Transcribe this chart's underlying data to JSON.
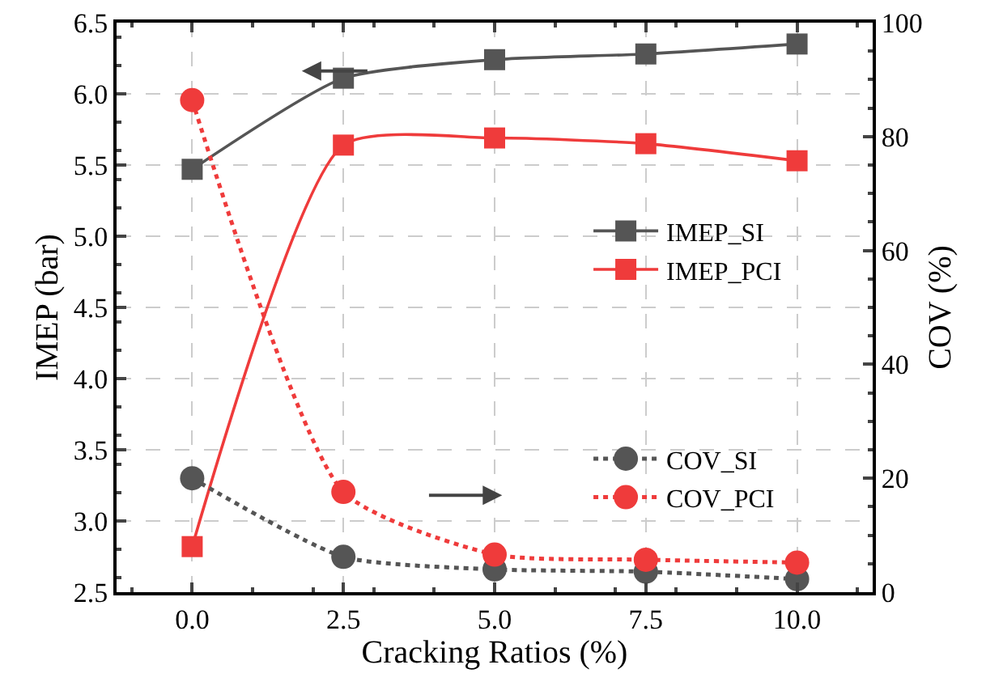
{
  "chart_data": {
    "type": "line",
    "xlabel": "Cracking Ratios (%)",
    "ylabel": "IMEP (bar)",
    "y2label": "COV (%)",
    "x": [
      0,
      2.5,
      5,
      7.5,
      10
    ],
    "xlim": [
      -1.25,
      11.25
    ],
    "xticks": [
      {
        "value": 0,
        "label": "0.0"
      },
      {
        "value": 2.5,
        "label": "2.5"
      },
      {
        "value": 5,
        "label": "5.0"
      },
      {
        "value": 7.5,
        "label": "7.5"
      },
      {
        "value": 10,
        "label": "10.0"
      }
    ],
    "ylim": [
      2.5,
      6.5
    ],
    "yticks": [
      {
        "value": 2.5,
        "label": "2.5"
      },
      {
        "value": 3,
        "label": "3.0"
      },
      {
        "value": 3.5,
        "label": "3.5"
      },
      {
        "value": 4,
        "label": "4.0"
      },
      {
        "value": 4.5,
        "label": "4.5"
      },
      {
        "value": 5,
        "label": "5.0"
      },
      {
        "value": 5.5,
        "label": "5.5"
      },
      {
        "value": 6,
        "label": "6.0"
      },
      {
        "value": 6.5,
        "label": "6.5"
      }
    ],
    "y2lim": [
      0,
      100
    ],
    "y2ticks": [
      0,
      20,
      40,
      60,
      80,
      100
    ],
    "grid": true,
    "legend": "right",
    "series": [
      {
        "name": "IMEP_SI",
        "color": "#555555",
        "values": [
          5.47,
          6.11,
          6.24,
          6.28,
          6.35
        ],
        "marker": "square",
        "line_style": "solid"
      },
      {
        "name": "IMEP_PCI",
        "color": "#ef3b3b",
        "values": [
          2.82,
          5.64,
          5.69,
          5.65,
          5.53
        ],
        "marker": "square",
        "line_style": "solid"
      },
      {
        "name": "COV_SI",
        "color": "#555555",
        "values": [
          20,
          6.2,
          4,
          3.6,
          2.3
        ],
        "axis": "y2",
        "marker": "circle",
        "line_style": "dotted"
      },
      {
        "name": "COV_PCI",
        "color": "#ef3b3b",
        "values": [
          86.4,
          17.6,
          6.6,
          5.7,
          5.2
        ],
        "axis": "y2",
        "marker": "circle",
        "line_style": "dotted"
      }
    ]
  }
}
